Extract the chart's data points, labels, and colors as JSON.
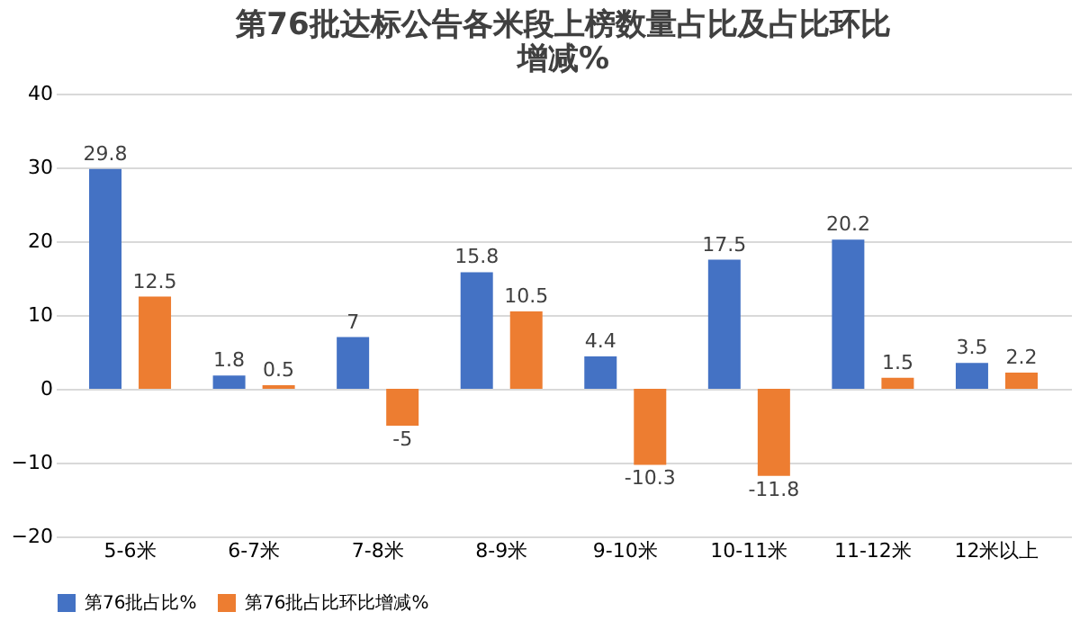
{
  "chart_data": {
    "type": "bar",
    "title": "第76批达标公告各米段上榜数量占比及占比环比增减%",
    "categories": [
      "5-6米",
      "6-7米",
      "7-8米",
      "8-9米",
      "9-10米",
      "10-11米",
      "11-12米",
      "12米以上"
    ],
    "series": [
      {
        "name": "第76批占比%",
        "color": "#4472c4",
        "values": [
          29.8,
          1.8,
          7,
          15.8,
          4.4,
          17.5,
          20.2,
          3.5
        ]
      },
      {
        "name": "第76批占比环比增减%",
        "color": "#ed7d31",
        "values": [
          12.5,
          0.5,
          -5,
          10.5,
          -10.3,
          -11.8,
          1.5,
          2.2
        ]
      }
    ],
    "ylim": [
      -20,
      40
    ],
    "yticks": [
      -20,
      -10,
      0,
      10,
      20,
      30,
      40
    ],
    "grid": "y",
    "legend": "bottom",
    "data_labels": true
  }
}
